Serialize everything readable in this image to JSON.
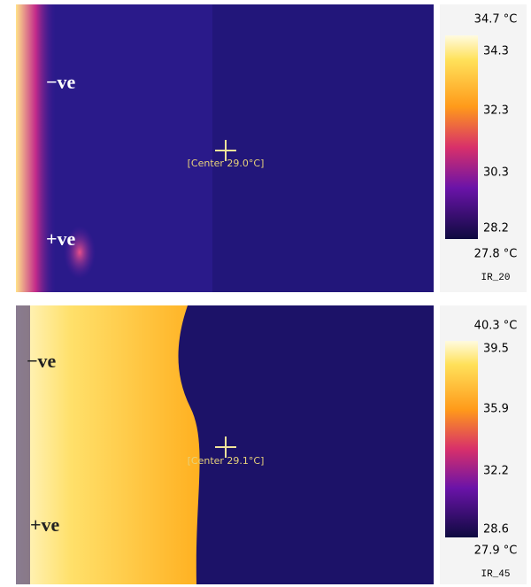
{
  "panels": [
    {
      "labels": {
        "negative": "−ve",
        "positive": "+ve"
      },
      "center": "[Center 29.0°C]",
      "scale": {
        "max": "34.7 °C",
        "ticks": [
          "34.3",
          "32.3",
          "30.3",
          "28.2"
        ],
        "min": "27.8 °C"
      },
      "name": "IR_20"
    },
    {
      "labels": {
        "negative": "−ve",
        "positive": "+ve"
      },
      "center": "[Center 29.1°C]",
      "scale": {
        "max": "40.3 °C",
        "ticks": [
          "39.5",
          "35.9",
          "32.2",
          "28.6"
        ],
        "min": "27.9 °C"
      },
      "name": "IR_45"
    }
  ]
}
